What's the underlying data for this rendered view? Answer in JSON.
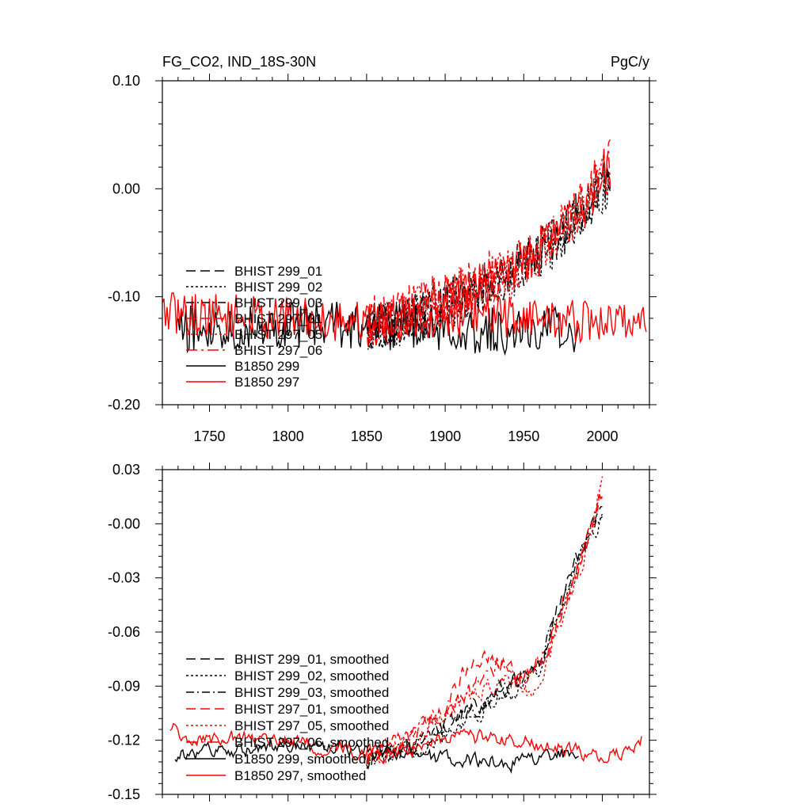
{
  "chart_data": [
    {
      "type": "line",
      "title": "FG_CO2, IND_18S-30N",
      "units": "PgC/y",
      "xlim": [
        1720,
        2030
      ],
      "ylim": [
        -0.2,
        0.1
      ],
      "x_ticks": [
        1750,
        1800,
        1850,
        1900,
        1950,
        2000
      ],
      "x_tick_labels": [
        "1750",
        "1800",
        "1850",
        "1900",
        "1950",
        "2000"
      ],
      "y_ticks": [
        -0.2,
        -0.1,
        0.0,
        0.1
      ],
      "y_tick_labels": [
        "-0.20",
        "-0.10",
        "0.00",
        "0.10"
      ],
      "legend_position": "bottom-left",
      "series": [
        {
          "name": "BHIST 299_01",
          "color": "#000000",
          "dash": "long-dash",
          "x_start": 1850,
          "x_end": 2005,
          "anchors": [
            [
              1850,
              -0.13
            ],
            [
              1870,
              -0.12
            ],
            [
              1900,
              -0.105
            ],
            [
              1930,
              -0.085
            ],
            [
              1950,
              -0.07
            ],
            [
              1970,
              -0.045
            ],
            [
              1990,
              -0.015
            ],
            [
              2005,
              0.02
            ]
          ],
          "noise": 0.022
        },
        {
          "name": "BHIST 299_02",
          "color": "#000000",
          "dash": "short-dash",
          "x_start": 1850,
          "x_end": 2005,
          "anchors": [
            [
              1850,
              -0.135
            ],
            [
              1870,
              -0.125
            ],
            [
              1900,
              -0.11
            ],
            [
              1930,
              -0.09
            ],
            [
              1950,
              -0.075
            ],
            [
              1970,
              -0.05
            ],
            [
              1990,
              -0.02
            ],
            [
              2005,
              0.0
            ]
          ],
          "noise": 0.022
        },
        {
          "name": "BHIST 299_03",
          "color": "#000000",
          "dash": "dash-dot",
          "x_start": 1850,
          "x_end": 2005,
          "anchors": [
            [
              1850,
              -0.13
            ],
            [
              1870,
              -0.12
            ],
            [
              1900,
              -0.108
            ],
            [
              1930,
              -0.088
            ],
            [
              1950,
              -0.072
            ],
            [
              1970,
              -0.048
            ],
            [
              1990,
              -0.018
            ],
            [
              2005,
              0.01
            ]
          ],
          "noise": 0.022
        },
        {
          "name": "BHIST 297_01",
          "color": "#ff0000",
          "dash": "long-dash",
          "x_start": 1850,
          "x_end": 2005,
          "anchors": [
            [
              1850,
              -0.125
            ],
            [
              1870,
              -0.115
            ],
            [
              1900,
              -0.1
            ],
            [
              1930,
              -0.08
            ],
            [
              1950,
              -0.07
            ],
            [
              1970,
              -0.04
            ],
            [
              1990,
              -0.01
            ],
            [
              2005,
              0.03
            ]
          ],
          "noise": 0.024
        },
        {
          "name": "BHIST 297_05",
          "color": "#ff0000",
          "dash": "short-dash",
          "x_start": 1850,
          "x_end": 2005,
          "anchors": [
            [
              1850,
              -0.13
            ],
            [
              1870,
              -0.118
            ],
            [
              1900,
              -0.102
            ],
            [
              1930,
              -0.083
            ],
            [
              1950,
              -0.075
            ],
            [
              1970,
              -0.045
            ],
            [
              1990,
              -0.012
            ],
            [
              2005,
              0.02
            ]
          ],
          "noise": 0.024
        },
        {
          "name": "BHIST 297_06",
          "color": "#ff0000",
          "dash": "long-dash-dot",
          "x_start": 1850,
          "x_end": 2005,
          "anchors": [
            [
              1850,
              -0.128
            ],
            [
              1870,
              -0.116
            ],
            [
              1900,
              -0.1
            ],
            [
              1930,
              -0.082
            ],
            [
              1950,
              -0.07
            ],
            [
              1970,
              -0.042
            ],
            [
              1990,
              -0.01
            ],
            [
              2005,
              0.025
            ]
          ],
          "noise": 0.024
        },
        {
          "name": "B1850 299",
          "color": "#000000",
          "dash": "solid",
          "x_start": 1730,
          "x_end": 1985,
          "anchors": [
            [
              1730,
              -0.13
            ],
            [
              1800,
              -0.125
            ],
            [
              1850,
              -0.127
            ],
            [
              1900,
              -0.13
            ],
            [
              1950,
              -0.132
            ],
            [
              1985,
              -0.13
            ]
          ],
          "noise": 0.022
        },
        {
          "name": "B1850 297",
          "color": "#ff0000",
          "dash": "solid",
          "x_start": 1720,
          "x_end": 2028,
          "anchors": [
            [
              1720,
              -0.115
            ],
            [
              1800,
              -0.12
            ],
            [
              1850,
              -0.122
            ],
            [
              1900,
              -0.118
            ],
            [
              1950,
              -0.118
            ],
            [
              2000,
              -0.125
            ],
            [
              2028,
              -0.12
            ]
          ],
          "noise": 0.02
        }
      ]
    },
    {
      "type": "line",
      "title": "",
      "xlim": [
        1720,
        2030
      ],
      "ylim": [
        -0.15,
        0.03
      ],
      "x_ticks": [
        1750,
        1800,
        1850,
        1900,
        1950,
        2000
      ],
      "x_tick_labels": [],
      "y_ticks": [
        -0.15,
        -0.12,
        -0.09,
        -0.06,
        -0.03,
        0.0,
        0.03
      ],
      "y_tick_labels": [
        "-0.15",
        "-0.12",
        "-0.09",
        "-0.06",
        "-0.03",
        "-0.00",
        "0.03"
      ],
      "legend_position": "bottom-left",
      "series": [
        {
          "name": "BHIST 299_01, smoothed",
          "color": "#000000",
          "dash": "long-dash",
          "x_start": 1850,
          "x_end": 2000,
          "anchors": [
            [
              1850,
              -0.13
            ],
            [
              1880,
              -0.122
            ],
            [
              1900,
              -0.112
            ],
            [
              1920,
              -0.1
            ],
            [
              1940,
              -0.09
            ],
            [
              1960,
              -0.075
            ],
            [
              1970,
              -0.05
            ],
            [
              1980,
              -0.03
            ],
            [
              1990,
              -0.005
            ],
            [
              2000,
              0.012
            ]
          ],
          "noise": 0.004
        },
        {
          "name": "BHIST 299_02, smoothed",
          "color": "#000000",
          "dash": "short-dash",
          "x_start": 1850,
          "x_end": 2000,
          "anchors": [
            [
              1850,
              -0.132
            ],
            [
              1880,
              -0.125
            ],
            [
              1900,
              -0.115
            ],
            [
              1920,
              -0.105
            ],
            [
              1940,
              -0.095
            ],
            [
              1960,
              -0.08
            ],
            [
              1970,
              -0.055
            ],
            [
              1980,
              -0.035
            ],
            [
              1990,
              -0.01
            ],
            [
              2000,
              0.0
            ]
          ],
          "noise": 0.004
        },
        {
          "name": "BHIST 299_03, smoothed",
          "color": "#000000",
          "dash": "dash-dot",
          "x_start": 1850,
          "x_end": 2000,
          "anchors": [
            [
              1850,
              -0.13
            ],
            [
              1880,
              -0.123
            ],
            [
              1900,
              -0.113
            ],
            [
              1920,
              -0.102
            ],
            [
              1940,
              -0.092
            ],
            [
              1960,
              -0.078
            ],
            [
              1970,
              -0.053
            ],
            [
              1980,
              -0.032
            ],
            [
              1990,
              -0.008
            ],
            [
              2000,
              0.005
            ]
          ],
          "noise": 0.004
        },
        {
          "name": "BHIST 297_01, smoothed",
          "color": "#ff0000",
          "dash": "long-dash",
          "x_start": 1850,
          "x_end": 2000,
          "anchors": [
            [
              1850,
              -0.128
            ],
            [
              1880,
              -0.118
            ],
            [
              1900,
              -0.1
            ],
            [
              1910,
              -0.085
            ],
            [
              1920,
              -0.073
            ],
            [
              1935,
              -0.078
            ],
            [
              1950,
              -0.085
            ],
            [
              1965,
              -0.07
            ],
            [
              1975,
              -0.045
            ],
            [
              1990,
              -0.012
            ],
            [
              2000,
              0.02
            ]
          ],
          "noise": 0.004
        },
        {
          "name": "BHIST 297_05, smoothed",
          "color": "#ff0000",
          "dash": "short-dash",
          "x_start": 1850,
          "x_end": 2000,
          "anchors": [
            [
              1850,
              -0.13
            ],
            [
              1880,
              -0.12
            ],
            [
              1900,
              -0.105
            ],
            [
              1920,
              -0.093
            ],
            [
              1940,
              -0.085
            ],
            [
              1955,
              -0.095
            ],
            [
              1965,
              -0.075
            ],
            [
              1975,
              -0.05
            ],
            [
              1990,
              -0.015
            ],
            [
              2000,
              0.025
            ]
          ],
          "noise": 0.004
        },
        {
          "name": "BHIST 297_06, smoothed",
          "color": "#ff0000",
          "dash": "long-dash-dot",
          "x_start": 1850,
          "x_end": 2000,
          "anchors": [
            [
              1850,
              -0.129
            ],
            [
              1880,
              -0.119
            ],
            [
              1900,
              -0.103
            ],
            [
              1920,
              -0.09
            ],
            [
              1935,
              -0.077
            ],
            [
              1950,
              -0.085
            ],
            [
              1965,
              -0.07
            ],
            [
              1975,
              -0.048
            ],
            [
              1990,
              -0.013
            ],
            [
              2000,
              0.018
            ]
          ],
          "noise": 0.004
        },
        {
          "name": "B1850 299, smoothed",
          "color": "#000000",
          "dash": "solid",
          "x_start": 1728,
          "x_end": 1985,
          "anchors": [
            [
              1728,
              -0.128
            ],
            [
              1780,
              -0.125
            ],
            [
              1820,
              -0.124
            ],
            [
              1860,
              -0.126
            ],
            [
              1900,
              -0.13
            ],
            [
              1940,
              -0.133
            ],
            [
              1985,
              -0.126
            ]
          ],
          "noise": 0.0035
        },
        {
          "name": "B1850 297, smoothed",
          "color": "#ff0000",
          "dash": "solid",
          "x_start": 1725,
          "x_end": 2025,
          "anchors": [
            [
              1725,
              -0.112
            ],
            [
              1740,
              -0.12
            ],
            [
              1780,
              -0.118
            ],
            [
              1820,
              -0.123
            ],
            [
              1860,
              -0.128
            ],
            [
              1900,
              -0.12
            ],
            [
              1930,
              -0.118
            ],
            [
              1960,
              -0.122
            ],
            [
              2000,
              -0.13
            ],
            [
              2025,
              -0.12
            ]
          ],
          "noise": 0.0035
        }
      ]
    }
  ]
}
